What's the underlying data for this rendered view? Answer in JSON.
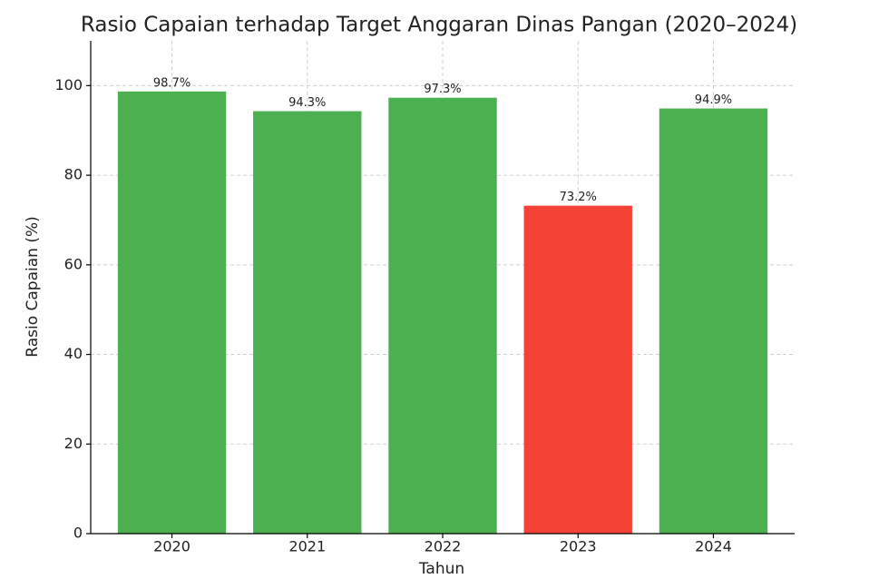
{
  "chart_data": {
    "type": "bar",
    "title": "Rasio Capaian terhadap Target Anggaran Dinas Pangan (2020–2024)",
    "xlabel": "Tahun",
    "ylabel": "Rasio Capaian (%)",
    "categories": [
      "2020",
      "2021",
      "2022",
      "2023",
      "2024"
    ],
    "values": [
      98.7,
      94.3,
      97.3,
      73.2,
      94.9
    ],
    "value_labels": [
      "98.7%",
      "94.3%",
      "97.3%",
      "73.2%",
      "94.9%"
    ],
    "colors": [
      "#4caf50",
      "#4caf50",
      "#4caf50",
      "#f44336",
      "#4caf50"
    ],
    "ylim": [
      0,
      110
    ],
    "yticks": [
      0,
      20,
      40,
      60,
      80,
      100
    ],
    "grid": true
  }
}
